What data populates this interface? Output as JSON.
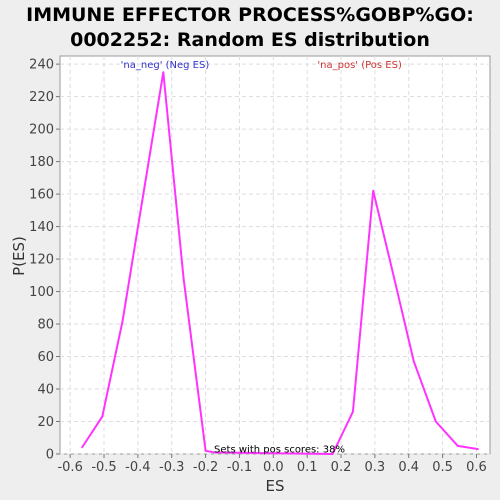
{
  "chart_data": {
    "type": "line",
    "title_lines": [
      "IMMUNE EFFECTOR PROCESS%GOBP%GO:",
      "0002252: Random ES distribution"
    ],
    "xlabel": "ES",
    "ylabel": "P(ES)",
    "xlim": [
      -0.63,
      0.64
    ],
    "ylim": [
      0,
      245
    ],
    "x_ticks": [
      "-0.6",
      "-0.5",
      "-0.4",
      "-0.3",
      "-0.2",
      "-0.1",
      "0.0",
      "0.1",
      "0.2",
      "0.3",
      "0.4",
      "0.5",
      "0.6"
    ],
    "y_ticks": [
      "0",
      "20",
      "40",
      "60",
      "80",
      "100",
      "120",
      "140",
      "160",
      "180",
      "200",
      "220",
      "240"
    ],
    "grid": true,
    "series": [
      {
        "color": "#ff33ff",
        "x": [
          -0.565,
          -0.505,
          -0.445,
          -0.325,
          -0.265,
          -0.2,
          -0.175,
          0.175,
          0.235,
          0.295,
          0.355,
          0.415,
          0.48,
          0.545,
          0.605
        ],
        "y": [
          4,
          23,
          82,
          235,
          108,
          2,
          1,
          0,
          26,
          162,
          110,
          57,
          20,
          5,
          3
        ]
      }
    ],
    "annotations": [
      {
        "text": "'na_neg' (Neg ES)",
        "x": -0.32,
        "y": 237.5,
        "color": "#3333cc",
        "anchor": "middle"
      },
      {
        "text": "'na_pos' (Pos ES)",
        "x": 0.255,
        "y": 237.5,
        "color": "#cc3333",
        "anchor": "middle"
      },
      {
        "text": "Sets with pos scores: 38%",
        "x": -0.175,
        "y": 1,
        "color": "#000000",
        "anchor": "start"
      }
    ]
  }
}
